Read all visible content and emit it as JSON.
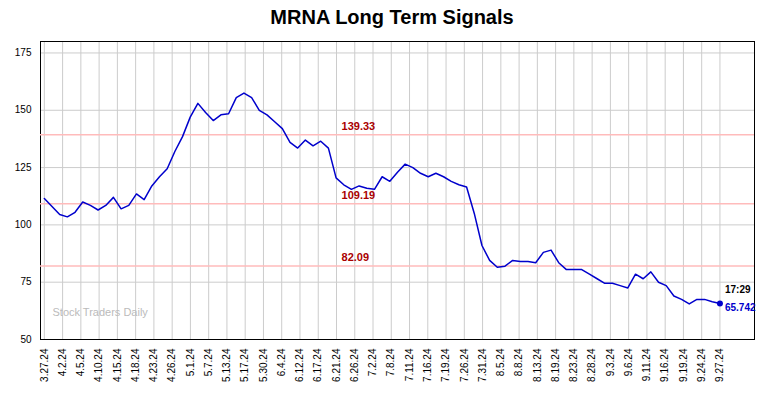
{
  "chart_data": {
    "type": "line",
    "title": "MRNA Long Term Signals",
    "color": "#0000cc",
    "values": [
      111.5,
      108.0,
      104.5,
      103.5,
      105.5,
      110.0,
      108.5,
      106.5,
      108.5,
      112.0,
      107.0,
      108.5,
      113.5,
      111.0,
      117.0,
      121.0,
      124.5,
      132.0,
      138.5,
      147.0,
      153.0,
      149.0,
      145.5,
      148.0,
      148.5,
      155.5,
      157.5,
      155.5,
      150.0,
      148.0,
      145.0,
      142.0,
      136.0,
      133.5,
      137.0,
      134.5,
      136.5,
      133.5,
      120.5,
      117.5,
      115.5,
      117.0,
      116.0,
      115.5,
      121.0,
      119.0,
      123.0,
      126.5,
      125.0,
      122.5,
      121.0,
      122.5,
      121.0,
      119.0,
      117.5,
      116.5,
      105.0,
      91.0,
      84.5,
      81.5,
      82.0,
      84.5,
      84.0,
      84.0,
      83.5,
      88.0,
      89.0,
      83.5,
      80.5,
      80.5,
      80.5,
      78.5,
      76.5,
      74.5,
      74.5,
      73.5,
      72.5,
      78.5,
      76.5,
      79.5,
      75.0,
      73.5,
      69.0,
      67.5,
      65.5,
      67.5,
      67.5,
      66.5,
      65.742
    ],
    "xlim": [
      -0.5,
      92.5
    ],
    "xticks": [
      {
        "value": 0,
        "label": "3.27.24"
      },
      {
        "value": 2.378378,
        "label": "4.2.24"
      },
      {
        "value": 4.756757,
        "label": "4.5.24"
      },
      {
        "value": 7.135135,
        "label": "4.10.24"
      },
      {
        "value": 9.513514,
        "label": "4.15.24"
      },
      {
        "value": 11.891892,
        "label": "4.18.24"
      },
      {
        "value": 14.27027,
        "label": "4.23.24"
      },
      {
        "value": 16.648649,
        "label": "4.26.24"
      },
      {
        "value": 19.027027,
        "label": "5.1.24"
      },
      {
        "value": 21.405405,
        "label": "5.7.24"
      },
      {
        "value": 23.783784,
        "label": "5.13.24"
      },
      {
        "value": 26.162162,
        "label": "5.17.24"
      },
      {
        "value": 28.540541,
        "label": "5.30.24"
      },
      {
        "value": 30.918919,
        "label": "6.4.24"
      },
      {
        "value": 33.297297,
        "label": "6.12.24"
      },
      {
        "value": 35.675676,
        "label": "6.17.24"
      },
      {
        "value": 38.054054,
        "label": "6.21.24"
      },
      {
        "value": 40.432432,
        "label": "6.26.24"
      },
      {
        "value": 42.810811,
        "label": "7.2.24"
      },
      {
        "value": 45.189189,
        "label": "7.8.24"
      },
      {
        "value": 47.567568,
        "label": "7.11.24"
      },
      {
        "value": 49.945946,
        "label": "7.16.24"
      },
      {
        "value": 52.324324,
        "label": "7.19.24"
      },
      {
        "value": 54.702703,
        "label": "7.26.24"
      },
      {
        "value": 57.081081,
        "label": "7.31.24"
      },
      {
        "value": 59.459459,
        "label": "8.5.24"
      },
      {
        "value": 61.837838,
        "label": "8.8.24"
      },
      {
        "value": 64.216216,
        "label": "8.13.24"
      },
      {
        "value": 66.594595,
        "label": "8.19.24"
      },
      {
        "value": 68.972973,
        "label": "8.23.24"
      },
      {
        "value": 71.351351,
        "label": "8.28.24"
      },
      {
        "value": 73.72973,
        "label": "9.3.24"
      },
      {
        "value": 76.108108,
        "label": "9.6.24"
      },
      {
        "value": 78.486486,
        "label": "9.11.24"
      },
      {
        "value": 80.864865,
        "label": "9.16.24"
      },
      {
        "value": 83.243243,
        "label": "9.19.24"
      },
      {
        "value": 85.621622,
        "label": "9.24.24"
      },
      {
        "value": 88,
        "label": "9.27.24"
      }
    ],
    "ylim": [
      50,
      180
    ],
    "yticks": [
      50,
      75,
      100,
      125,
      150,
      175
    ],
    "grid": true,
    "reference_lines": [
      {
        "value": 82.09,
        "label": "82.09",
        "color": "#ffbbbb",
        "label_color": "#aa0000"
      },
      {
        "value": 109.19,
        "label": "109.19",
        "color": "#ffbbbb",
        "label_color": "#aa0000"
      },
      {
        "value": 139.33,
        "label": "139.33",
        "color": "#ffbbbb",
        "label_color": "#aa0000"
      }
    ],
    "end_label_time": "17:29",
    "end_label_price": "65.742",
    "end_label_price_color": "#0000cc",
    "watermark": "Stock Traders Daily"
  }
}
